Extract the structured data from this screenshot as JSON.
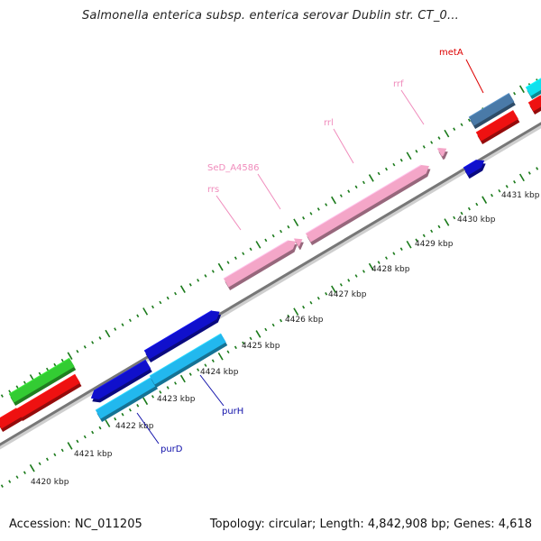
{
  "title": "Salmonella enterica subsp. enterica serovar Dublin str. CT_0...",
  "footer": {
    "accession": "Accession: NC_011205",
    "summary": "Topology: circular; Length: 4,842,908 bp; Genes: 4,618"
  },
  "ruler": {
    "ticks": [
      "4420 kbp",
      "4421 kbp",
      "4422 kbp",
      "4423 kbp",
      "4424 kbp",
      "4425 kbp",
      "4426 kbp",
      "4427 kbp",
      "4428 kbp",
      "4429 kbp",
      "4430 kbp",
      "4431 kbp"
    ]
  },
  "colors": {
    "backbone": "#8a8a8a",
    "tick": "#1a7a1a",
    "rRNA": "#f4a6c8",
    "purple_blue": "#1010cc",
    "light_blue": "#22b8ee",
    "red": "#ee1111",
    "green": "#33cc33",
    "cyan": "#11e0ee",
    "steel": "#4a7aa8"
  },
  "labels": {
    "metA": "metA",
    "rrf": "rrf",
    "rrl": "rrl",
    "SeD_A4586": "SeD_A4586",
    "rrs": "rrs",
    "purH": "purH",
    "purD": "purD"
  }
}
